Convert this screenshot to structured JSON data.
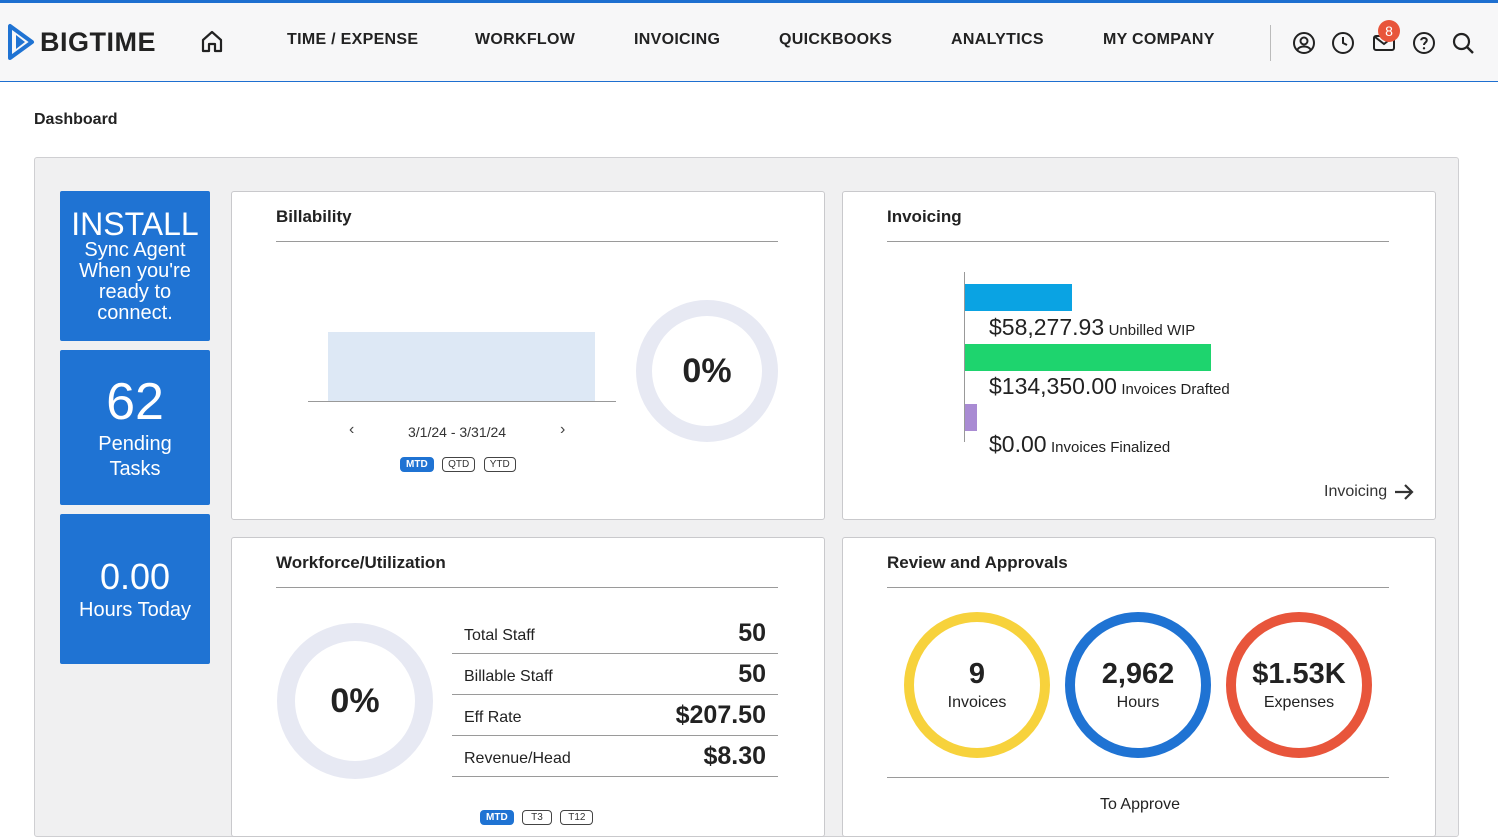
{
  "brand": {
    "name": "BIGTIME",
    "accent": "#1f73d3"
  },
  "nav": {
    "items": [
      {
        "label": "TIME / EXPENSE"
      },
      {
        "label": "WORKFLOW"
      },
      {
        "label": "INVOICING"
      },
      {
        "label": "QUICKBOOKS"
      },
      {
        "label": "ANALYTICS"
      },
      {
        "label": "MY COMPANY"
      }
    ],
    "icons": [
      "user-icon",
      "clock-icon",
      "mail-icon",
      "help-icon",
      "search-icon"
    ],
    "mail_badge": "8"
  },
  "page": {
    "title": "Dashboard"
  },
  "tiles": {
    "install": {
      "big": "INSTALL",
      "line1": "Sync Agent",
      "line2": "When you're",
      "line3": "ready to",
      "line4": "connect."
    },
    "tasks": {
      "value": "62",
      "line1": "Pending",
      "line2": "Tasks"
    },
    "hours": {
      "value": "0.00",
      "label": "Hours Today"
    }
  },
  "billability": {
    "title": "Billability",
    "date_range": "3/1/24 - 3/31/24",
    "percent": "0%",
    "ranges": [
      "MTD",
      "QTD",
      "YTD"
    ],
    "active_range": "MTD"
  },
  "invoicing": {
    "title": "Invoicing",
    "link_label": "Invoicing",
    "chart_data": {
      "type": "bar",
      "categories": [
        "Unbilled WIP",
        "Invoices Drafted",
        "Invoices Finalized"
      ],
      "values": [
        58277.93,
        134350.0,
        0.0
      ],
      "value_labels": [
        "$58,277.93",
        "$134,350.00",
        "$0.00"
      ],
      "colors": [
        "#0aa3e3",
        "#1ed46e",
        "#a98bd3"
      ]
    }
  },
  "workforce": {
    "title": "Workforce/Utilization",
    "percent": "0%",
    "rows": [
      {
        "label": "Total Staff",
        "value": "50"
      },
      {
        "label": "Billable Staff",
        "value": "50"
      },
      {
        "label": "Eff Rate",
        "value": "$207.50"
      },
      {
        "label": "Revenue/Head",
        "value": "$8.30"
      }
    ],
    "ranges": [
      "MTD",
      "T3",
      "T12"
    ],
    "active_range": "MTD"
  },
  "review": {
    "title": "Review and Approvals",
    "footer": "To Approve",
    "items": [
      {
        "value": "9",
        "label": "Invoices",
        "color": "#f7d23c"
      },
      {
        "value": "2,962",
        "label": "Hours",
        "color": "#1f73d3"
      },
      {
        "value": "$1.53K",
        "label": "Expenses",
        "color": "#e8553b"
      }
    ]
  }
}
